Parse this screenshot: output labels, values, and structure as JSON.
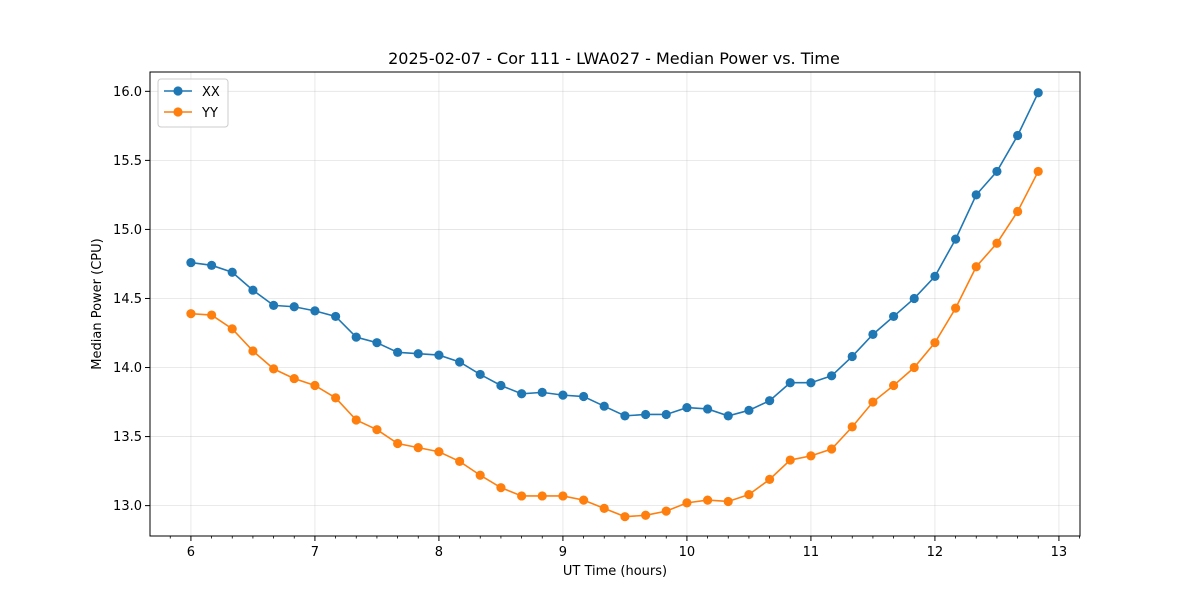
{
  "chart_data": {
    "type": "line",
    "title": "2025-02-07 - Cor 111 - LWA027 - Median Power vs. Time",
    "xlabel": "UT Time (hours)",
    "ylabel": "Median Power (CPU)",
    "xlim": [
      5.67,
      13.17
    ],
    "ylim": [
      12.78,
      16.14
    ],
    "xticks": [
      6,
      7,
      8,
      9,
      10,
      11,
      12,
      13
    ],
    "yticks": [
      13.0,
      13.5,
      14.0,
      14.5,
      15.0,
      15.5,
      16.0
    ],
    "ytick_labels": [
      "13.0",
      "13.5",
      "14.0",
      "14.5",
      "15.0",
      "15.5",
      "16.0"
    ],
    "grid": true,
    "legend_position": "top-left",
    "x": [
      6.0,
      6.167,
      6.333,
      6.5,
      6.667,
      6.833,
      7.0,
      7.167,
      7.333,
      7.5,
      7.667,
      7.833,
      8.0,
      8.167,
      8.333,
      8.5,
      8.667,
      8.833,
      9.0,
      9.167,
      9.333,
      9.5,
      9.667,
      9.833,
      10.0,
      10.167,
      10.333,
      10.5,
      10.667,
      10.833,
      11.0,
      11.167,
      11.333,
      11.5,
      11.667,
      11.833,
      12.0,
      12.167,
      12.333,
      12.5,
      12.667,
      12.833
    ],
    "series": [
      {
        "name": "XX",
        "color": "#1f77b4",
        "values": [
          14.76,
          14.74,
          14.69,
          14.56,
          14.45,
          14.44,
          14.41,
          14.37,
          14.22,
          14.18,
          14.11,
          14.1,
          14.09,
          14.04,
          13.95,
          13.87,
          13.81,
          13.82,
          13.8,
          13.79,
          13.72,
          13.65,
          13.66,
          13.66,
          13.71,
          13.7,
          13.65,
          13.69,
          13.76,
          13.89,
          13.89,
          13.94,
          14.08,
          14.24,
          14.37,
          14.5,
          14.66,
          14.93,
          15.25,
          15.42,
          15.68,
          15.99
        ]
      },
      {
        "name": "YY",
        "color": "#ff7f0e",
        "values": [
          14.39,
          14.38,
          14.28,
          14.12,
          13.99,
          13.92,
          13.87,
          13.78,
          13.62,
          13.55,
          13.45,
          13.42,
          13.39,
          13.32,
          13.22,
          13.13,
          13.07,
          13.07,
          13.07,
          13.04,
          12.98,
          12.92,
          12.93,
          12.96,
          13.02,
          13.04,
          13.03,
          13.08,
          13.19,
          13.33,
          13.36,
          13.41,
          13.57,
          13.75,
          13.87,
          14.0,
          14.18,
          14.43,
          14.73,
          14.9,
          15.13,
          15.42
        ]
      }
    ]
  }
}
